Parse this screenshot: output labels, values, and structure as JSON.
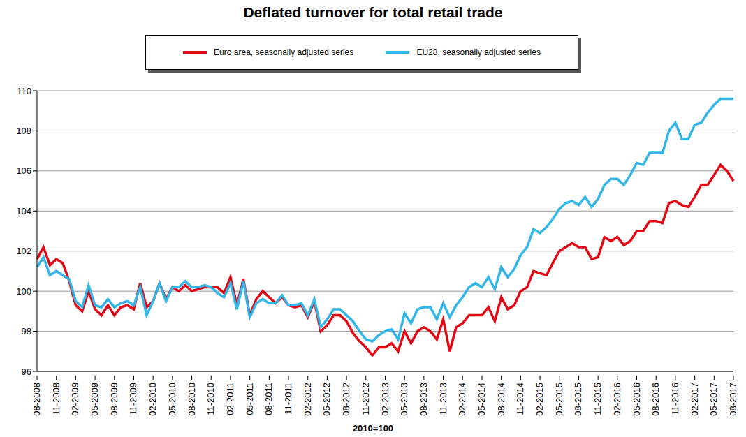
{
  "chart_data": {
    "type": "line",
    "title": "Deflated turnover for total retail trade",
    "x_label": "2010=100",
    "categories": [
      "08-2008",
      null,
      null,
      "11-2008",
      null,
      null,
      "02-2009",
      null,
      null,
      "05-2009",
      null,
      null,
      "08-2009",
      null,
      null,
      "11-2009",
      null,
      null,
      "02-2010",
      null,
      null,
      "05-2010",
      null,
      null,
      "08-2010",
      null,
      null,
      "11-2010",
      null,
      null,
      "02-2011",
      null,
      null,
      "05-2011",
      null,
      null,
      "08-2011",
      null,
      null,
      "11-2011",
      null,
      null,
      "02-2012",
      null,
      null,
      "05-2012",
      null,
      null,
      "08-2012",
      null,
      null,
      "11-2012",
      null,
      null,
      "02-2013",
      null,
      null,
      "05-2013",
      null,
      null,
      "08-2013",
      null,
      null,
      "11-2013",
      null,
      null,
      "02-2014",
      null,
      null,
      "05-2014",
      null,
      null,
      "08-2014",
      null,
      null,
      "11-2014",
      null,
      null,
      "02-2015",
      null,
      null,
      "05-2015",
      null,
      null,
      "08-2015",
      null,
      null,
      "11-2015",
      null,
      null,
      "02-2016",
      null,
      null,
      "05-2016",
      null,
      null,
      "08-2016",
      null,
      null,
      "11-2016",
      null,
      null,
      "02-2017",
      null,
      null,
      "05-2017",
      null,
      null,
      "08-2017"
    ],
    "series": [
      {
        "name": "Euro area, seasonally adjusted series",
        "color": "#e30613",
        "values": [
          101.6,
          102.2,
          101.3,
          101.6,
          101.4,
          100.5,
          99.3,
          99.0,
          100.0,
          99.1,
          98.8,
          99.3,
          98.8,
          99.2,
          99.3,
          99.1,
          100.4,
          99.2,
          99.5,
          100.4,
          99.6,
          100.2,
          100.0,
          100.3,
          100.0,
          100.1,
          100.2,
          100.2,
          100.2,
          99.9,
          100.7,
          99.3,
          100.6,
          98.8,
          99.6,
          100.0,
          99.7,
          99.4,
          99.7,
          99.3,
          99.2,
          99.3,
          98.7,
          99.5,
          98.0,
          98.3,
          98.8,
          98.8,
          98.5,
          97.9,
          97.5,
          97.2,
          96.8,
          97.2,
          97.2,
          97.4,
          97.0,
          98.0,
          97.4,
          98.0,
          98.2,
          98.0,
          97.6,
          98.6,
          97.0,
          98.2,
          98.4,
          98.8,
          98.8,
          98.8,
          99.2,
          98.5,
          99.7,
          99.1,
          99.3,
          100.0,
          100.2,
          101.0,
          100.9,
          100.8,
          101.4,
          102.0,
          102.2,
          102.4,
          102.2,
          102.2,
          101.6,
          101.7,
          102.7,
          102.5,
          102.7,
          102.3,
          102.5,
          103.0,
          103.0,
          103.5,
          103.5,
          103.4,
          104.4,
          104.5,
          104.3,
          104.2,
          104.7,
          105.3,
          105.3,
          105.8,
          106.3,
          106.0,
          105.5
        ]
      },
      {
        "name": "EU28, seasonally adjusted series",
        "color": "#31b6e7",
        "values": [
          101.2,
          101.7,
          100.8,
          101.0,
          100.8,
          100.6,
          99.5,
          99.2,
          100.3,
          99.3,
          99.2,
          99.6,
          99.2,
          99.4,
          99.5,
          99.3,
          100.2,
          98.8,
          99.5,
          100.4,
          99.5,
          100.2,
          100.2,
          100.5,
          100.2,
          100.2,
          100.3,
          100.2,
          99.9,
          99.7,
          100.4,
          99.1,
          100.5,
          98.7,
          99.4,
          99.6,
          99.4,
          99.4,
          99.8,
          99.3,
          99.3,
          99.4,
          98.8,
          99.6,
          98.2,
          98.6,
          99.1,
          99.1,
          98.8,
          98.5,
          98.0,
          97.6,
          97.5,
          97.8,
          98.0,
          98.1,
          97.6,
          98.9,
          98.4,
          99.1,
          99.2,
          99.2,
          98.6,
          99.4,
          98.7,
          99.3,
          99.7,
          100.2,
          100.4,
          100.2,
          100.7,
          100.1,
          101.2,
          100.7,
          101.1,
          101.8,
          102.2,
          103.1,
          102.9,
          103.2,
          103.6,
          104.1,
          104.4,
          104.5,
          104.3,
          104.7,
          104.2,
          104.6,
          105.3,
          105.6,
          105.6,
          105.3,
          105.8,
          106.4,
          106.3,
          106.9,
          106.9,
          106.9,
          108.0,
          108.4,
          107.6,
          107.6,
          108.3,
          108.4,
          108.9,
          109.3,
          109.6,
          109.6,
          109.6
        ]
      }
    ],
    "ylim": [
      96,
      110
    ],
    "yticks": [
      96,
      98,
      100,
      102,
      104,
      106,
      108,
      110
    ],
    "grid": true,
    "legend": "top"
  }
}
